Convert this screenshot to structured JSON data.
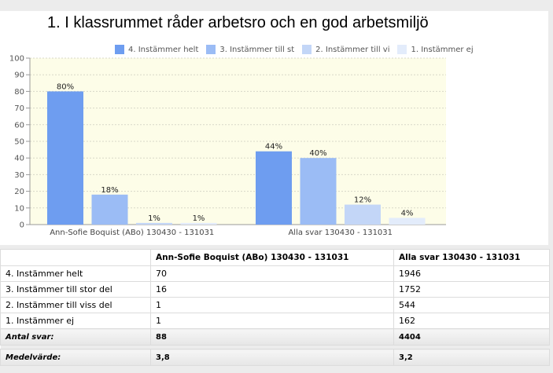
{
  "chart_data": {
    "type": "bar",
    "title": "1. I klassrummet råder arbetsro och en god arbetsmiljö",
    "categories": [
      "Ann-Sofie Boquist (ABo) 130430 - 131031",
      "Alla svar 130430 - 131031"
    ],
    "series": [
      {
        "name": "4. Instämmer helt",
        "values": [
          80,
          44
        ],
        "labels": [
          "80%",
          "44%"
        ],
        "color": "#6e9df0"
      },
      {
        "name": "3. Instämmer till st",
        "values": [
          18,
          40
        ],
        "labels": [
          "18%",
          "40%"
        ],
        "color": "#9bbcf5"
      },
      {
        "name": "2. Instämmer till vi",
        "values": [
          1,
          12
        ],
        "labels": [
          "1%",
          "12%"
        ],
        "color": "#c3d6f7"
      },
      {
        "name": "1. Instämmer ej",
        "values": [
          1,
          4
        ],
        "labels": [
          "1%",
          "4%"
        ],
        "color": "#e3ecfb"
      }
    ],
    "yticks": [
      0,
      10,
      20,
      30,
      40,
      50,
      60,
      70,
      80,
      90,
      100
    ],
    "ylim": [
      0,
      100
    ],
    "grid": true,
    "legend_position": "top",
    "plot_background": "#fdfde8"
  },
  "table": {
    "headers": [
      "",
      "Ann-Sofie Boquist (ABo) 130430 - 131031",
      "Alla svar 130430 - 131031"
    ],
    "rows": [
      [
        "4. Instämmer helt",
        "70",
        "1946"
      ],
      [
        "3. Instämmer till stor del",
        "16",
        "1752"
      ],
      [
        "2. Instämmer till viss del",
        "1",
        "544"
      ],
      [
        "1. Instämmer ej",
        "1",
        "162"
      ]
    ],
    "summary": [
      [
        "Antal svar:",
        "88",
        "4404"
      ],
      [
        "Medelvärde:",
        "3,8",
        "3,2"
      ]
    ]
  }
}
